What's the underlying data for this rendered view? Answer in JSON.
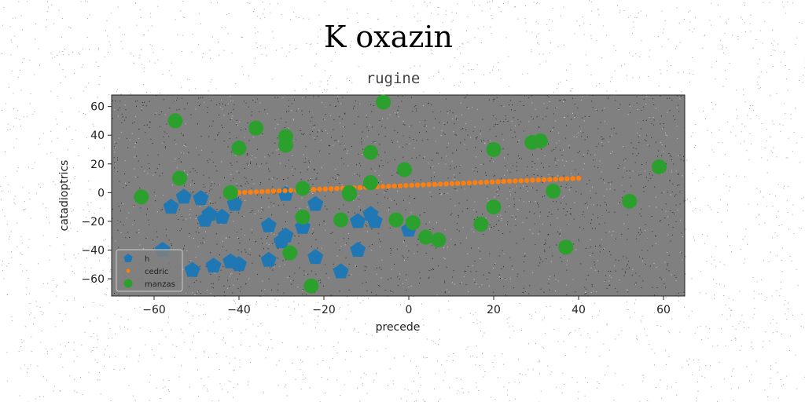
{
  "chart_data": {
    "type": "scatter",
    "suptitle": "K oxazin",
    "title": "rugine",
    "xlabel": "precede",
    "ylabel": "catadioptrics",
    "xlim": [
      -70,
      65
    ],
    "ylim": [
      -72,
      68
    ],
    "xticks": [
      -60,
      -40,
      -20,
      0,
      20,
      40,
      60
    ],
    "yticks": [
      -60,
      -40,
      -20,
      0,
      20,
      40,
      60
    ],
    "xtick_labels": [
      "−60",
      "−40",
      "−20",
      "0",
      "20",
      "40",
      "60"
    ],
    "ytick_labels": [
      "−60",
      "−40",
      "−20",
      "0",
      "20",
      "40",
      "60"
    ],
    "grid": false,
    "legend_position": "lower-left",
    "background": "#808080",
    "series": [
      {
        "name": "h",
        "marker": "pentagon",
        "color": "#1f77b4",
        "points": [
          [
            -58,
            -40
          ],
          [
            -56,
            -10
          ],
          [
            -53,
            -3
          ],
          [
            -49,
            -4
          ],
          [
            -48,
            -19
          ],
          [
            -47,
            -15
          ],
          [
            -44,
            -17
          ],
          [
            -41,
            -8
          ],
          [
            -51,
            -54
          ],
          [
            -46,
            -51
          ],
          [
            -42,
            -48
          ],
          [
            -40,
            -50
          ],
          [
            -33,
            -23
          ],
          [
            -33,
            -47
          ],
          [
            -30,
            -34
          ],
          [
            -29,
            -30
          ],
          [
            -29,
            -1
          ],
          [
            -25,
            -24
          ],
          [
            -22,
            -8
          ],
          [
            -22,
            -45
          ],
          [
            -16,
            -55
          ],
          [
            -12,
            -20
          ],
          [
            -12,
            -40
          ],
          [
            -9,
            -15
          ],
          [
            -8,
            -20
          ],
          [
            0,
            -26
          ]
        ]
      },
      {
        "name": "cedric",
        "marker": "circle-small",
        "color": "#ff7f0e",
        "x_start": -40,
        "x_end": 40,
        "y_start": 0,
        "y_end": 10,
        "count": 60
      },
      {
        "name": "manzas",
        "marker": "circle",
        "color": "#2ca02c",
        "points": [
          [
            -63,
            -3
          ],
          [
            -55,
            50
          ],
          [
            -54,
            10
          ],
          [
            -42,
            0
          ],
          [
            -40,
            31
          ],
          [
            -36,
            45
          ],
          [
            -29,
            39
          ],
          [
            -29,
            33
          ],
          [
            -28,
            -42
          ],
          [
            -25,
            3
          ],
          [
            -25,
            -17
          ],
          [
            -23,
            -65
          ],
          [
            -16,
            -19
          ],
          [
            -14,
            -1
          ],
          [
            -14,
            0
          ],
          [
            -9,
            28
          ],
          [
            -9,
            7
          ],
          [
            -6,
            63
          ],
          [
            -3,
            -19
          ],
          [
            -1,
            16
          ],
          [
            1,
            -21
          ],
          [
            4,
            -31
          ],
          [
            7,
            -33
          ],
          [
            17,
            -22
          ],
          [
            20,
            30
          ],
          [
            20,
            -10
          ],
          [
            29,
            35
          ],
          [
            31,
            36
          ],
          [
            34,
            1
          ],
          [
            37,
            -38
          ],
          [
            52,
            -6
          ],
          [
            59,
            18
          ]
        ]
      }
    ]
  },
  "colors": {
    "plot_background": "#808080",
    "noise_dark": "#111111",
    "noise_light": "#dddddd"
  }
}
